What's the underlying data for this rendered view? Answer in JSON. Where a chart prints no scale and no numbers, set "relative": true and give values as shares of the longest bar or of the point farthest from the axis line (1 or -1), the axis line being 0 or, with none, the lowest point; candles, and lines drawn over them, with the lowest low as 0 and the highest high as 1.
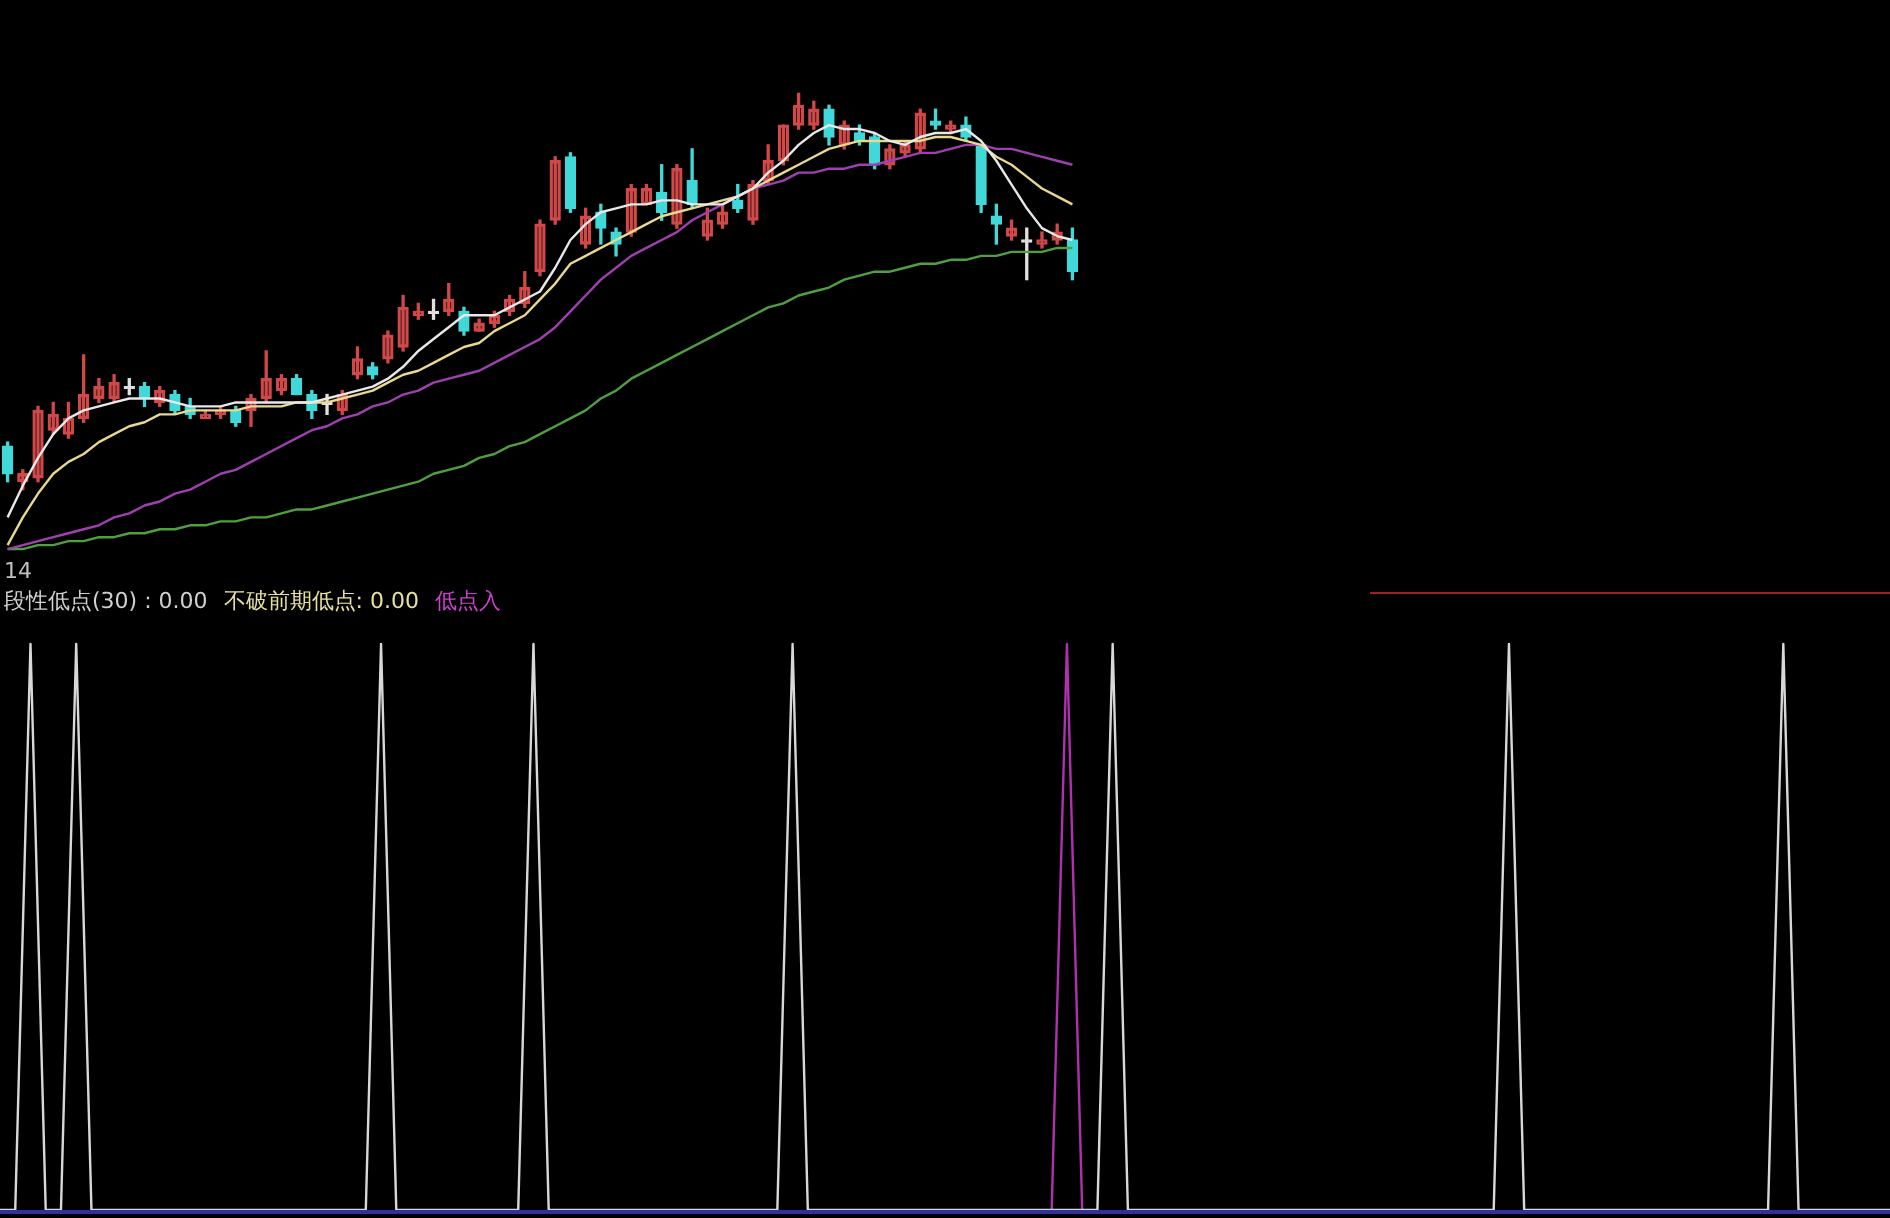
{
  "chart_data": [
    {
      "type": "candlestick",
      "relative": true,
      "marker": "none",
      "annotations": [
        "14"
      ],
      "categories": [
        null,
        null,
        null,
        null,
        null,
        null,
        null,
        null,
        null,
        null,
        null,
        null,
        null,
        null,
        null,
        null,
        null,
        null,
        null,
        null,
        null,
        null,
        null,
        null,
        null,
        null,
        null,
        null,
        null,
        null,
        null,
        null,
        null,
        null,
        null,
        null,
        null,
        null,
        null,
        null,
        null,
        null,
        null,
        null,
        null,
        null,
        null,
        null,
        null,
        null,
        null,
        null,
        null,
        null,
        null,
        null,
        null,
        null,
        null,
        null,
        null,
        null,
        null,
        null,
        null,
        null,
        null,
        null,
        null,
        null,
        null
      ],
      "ohlc": [
        [
          0.11,
          0.12,
          0.02,
          0.04
        ],
        [
          0.02,
          0.05,
          0,
          0.04
        ],
        [
          0.03,
          0.21,
          0.02,
          0.2
        ],
        [
          0.15,
          0.22,
          0.14,
          0.19
        ],
        [
          0.14,
          0.22,
          0.13,
          0.18
        ],
        [
          0.18,
          0.34,
          0.17,
          0.24
        ],
        [
          0.23,
          0.28,
          0.22,
          0.26
        ],
        [
          0.23,
          0.29,
          0.22,
          0.27
        ],
        [
          0.26,
          0.28,
          0.24,
          0.26
        ],
        [
          0.26,
          0.27,
          0.21,
          0.23
        ],
        [
          0.22,
          0.26,
          0.21,
          0.25
        ],
        [
          0.24,
          0.25,
          0.19,
          0.2
        ],
        [
          0.21,
          0.23,
          0.18,
          0.19
        ],
        [
          0.18,
          0.2,
          0.18,
          0.19
        ],
        [
          0.19,
          0.21,
          0.18,
          0.2
        ],
        [
          0.2,
          0.21,
          0.16,
          0.17
        ],
        [
          0.2,
          0.24,
          0.16,
          0.23
        ],
        [
          0.23,
          0.35,
          0.22,
          0.28
        ],
        [
          0.25,
          0.29,
          0.24,
          0.28
        ],
        [
          0.28,
          0.29,
          0.24,
          0.24
        ],
        [
          0.24,
          0.25,
          0.18,
          0.2
        ],
        [
          0.22,
          0.24,
          0.19,
          0.22
        ],
        [
          0.2,
          0.25,
          0.19,
          0.24
        ],
        [
          0.29,
          0.36,
          0.28,
          0.33
        ],
        [
          0.31,
          0.32,
          0.28,
          0.29
        ],
        [
          0.33,
          0.4,
          0.32,
          0.39
        ],
        [
          0.36,
          0.49,
          0.35,
          0.46
        ],
        [
          0.44,
          0.47,
          0.43,
          0.45
        ],
        [
          0.45,
          0.48,
          0.43,
          0.45
        ],
        [
          0.45,
          0.52,
          0.44,
          0.48
        ],
        [
          0.45,
          0.46,
          0.39,
          0.4
        ],
        [
          0.4,
          0.43,
          0.4,
          0.42
        ],
        [
          0.42,
          0.45,
          0.41,
          0.44
        ],
        [
          0.45,
          0.49,
          0.44,
          0.48
        ],
        [
          0.47,
          0.55,
          0.46,
          0.51
        ],
        [
          0.55,
          0.68,
          0.54,
          0.67
        ],
        [
          0.68,
          0.84,
          0.67,
          0.83
        ],
        [
          0.84,
          0.85,
          0.7,
          0.71
        ],
        [
          0.62,
          0.71,
          0.61,
          0.69
        ],
        [
          0.7,
          0.72,
          0.62,
          0.66
        ],
        [
          0.65,
          0.66,
          0.59,
          0.62
        ],
        [
          0.65,
          0.77,
          0.64,
          0.76
        ],
        [
          0.72,
          0.77,
          0.72,
          0.76
        ],
        [
          0.75,
          0.82,
          0.68,
          0.7
        ],
        [
          0.67,
          0.82,
          0.66,
          0.81
        ],
        [
          0.78,
          0.86,
          0.71,
          0.72
        ],
        [
          0.64,
          0.71,
          0.63,
          0.68
        ],
        [
          0.67,
          0.72,
          0.66,
          0.7
        ],
        [
          0.73,
          0.77,
          0.7,
          0.71
        ],
        [
          0.68,
          0.78,
          0.67,
          0.77
        ],
        [
          0.78,
          0.87,
          0.77,
          0.83
        ],
        [
          0.83,
          0.92,
          0.82,
          0.92
        ],
        [
          0.92,
          1,
          0.91,
          0.97
        ],
        [
          0.92,
          0.98,
          0.91,
          0.96
        ],
        [
          0.96,
          0.97,
          0.87,
          0.89
        ],
        [
          0.87,
          0.93,
          0.86,
          0.92
        ],
        [
          0.9,
          0.92,
          0.87,
          0.88
        ],
        [
          0.89,
          0.9,
          0.81,
          0.82
        ],
        [
          0.82,
          0.87,
          0.81,
          0.86
        ],
        [
          0.85,
          0.88,
          0.84,
          0.87
        ],
        [
          0.86,
          0.96,
          0.85,
          0.95
        ],
        [
          0.93,
          0.96,
          0.91,
          0.92
        ],
        [
          0.91,
          0.93,
          0.9,
          0.92
        ],
        [
          0.92,
          0.94,
          0.88,
          0.89
        ],
        [
          0.87,
          0.87,
          0.7,
          0.72
        ],
        [
          0.69,
          0.72,
          0.62,
          0.67
        ],
        [
          0.64,
          0.68,
          0.63,
          0.66
        ],
        [
          0.63,
          0.66,
          0.53,
          0.63
        ],
        [
          0.62,
          0.65,
          0.61,
          0.63
        ],
        [
          0.63,
          0.67,
          0.62,
          0.65
        ],
        [
          0.63,
          0.66,
          0.53,
          0.55
        ]
      ],
      "colors": [
        "#40d8d8",
        "#d04848",
        "#d04848",
        "#d04848",
        "#d04848",
        "#d04848",
        "#d04848",
        "#d04848",
        "#e0e0e0",
        "#40d8d8",
        "#d04848",
        "#40d8d8",
        "#40d8d8",
        "#d04848",
        "#d04848",
        "#40d8d8",
        "#d04848",
        "#d04848",
        "#d04848",
        "#40d8d8",
        "#40d8d8",
        "#e0e0e0",
        "#d04848",
        "#d04848",
        "#40d8d8",
        "#d04848",
        "#d04848",
        "#d04848",
        "#e0e0e0",
        "#d04848",
        "#40d8d8",
        "#d04848",
        "#d04848",
        "#d04848",
        "#d04848",
        "#d04848",
        "#d04848",
        "#40d8d8",
        "#d04848",
        "#40d8d8",
        "#40d8d8",
        "#d04848",
        "#d04848",
        "#40d8d8",
        "#d04848",
        "#40d8d8",
        "#d04848",
        "#d04848",
        "#40d8d8",
        "#d04848",
        "#d04848",
        "#d04848",
        "#d04848",
        "#d04848",
        "#40d8d8",
        "#d04848",
        "#40d8d8",
        "#40d8d8",
        "#d04848",
        "#d04848",
        "#d04848",
        "#40d8d8",
        "#d04848",
        "#40d8d8",
        "#40d8d8",
        "#40d8d8",
        "#d04848",
        "#e0e0e0",
        "#d04848",
        "#d04848",
        "#40d8d8"
      ],
      "series": [
        {
          "type": "line",
          "color": "#e8e8e8",
          "values": [
            -0.07,
            0.01,
            0.08,
            0.14,
            0.18,
            0.2,
            0.21,
            0.22,
            0.23,
            0.23,
            0.23,
            0.22,
            0.21,
            0.21,
            0.21,
            0.22,
            0.22,
            0.22,
            0.22,
            0.22,
            0.22,
            0.23,
            0.24,
            0.25,
            0.26,
            0.28,
            0.31,
            0.35,
            0.38,
            0.41,
            0.44,
            0.44,
            0.44,
            0.46,
            0.48,
            0.5,
            0.56,
            0.63,
            0.67,
            0.7,
            0.71,
            0.72,
            0.72,
            0.73,
            0.73,
            0.72,
            0.72,
            0.72,
            0.74,
            0.76,
            0.8,
            0.83,
            0.87,
            0.9,
            0.92,
            0.91,
            0.91,
            0.9,
            0.88,
            0.87,
            0.89,
            0.9,
            0.9,
            0.91,
            0.88,
            0.83,
            0.77,
            0.71,
            0.66,
            0.64,
            0.63
          ]
        },
        {
          "type": "line",
          "color": "#e8d890",
          "values": [
            -0.14,
            -0.07,
            -0.01,
            0.04,
            0.07,
            0.09,
            0.12,
            0.14,
            0.16,
            0.17,
            0.19,
            0.19,
            0.2,
            0.2,
            0.2,
            0.2,
            0.21,
            0.21,
            0.21,
            0.22,
            0.22,
            0.22,
            0.23,
            0.24,
            0.25,
            0.27,
            0.29,
            0.3,
            0.32,
            0.34,
            0.36,
            0.37,
            0.4,
            0.42,
            0.44,
            0.48,
            0.52,
            0.57,
            0.59,
            0.61,
            0.63,
            0.65,
            0.67,
            0.69,
            0.7,
            0.71,
            0.72,
            0.73,
            0.74,
            0.76,
            0.78,
            0.8,
            0.82,
            0.84,
            0.86,
            0.87,
            0.88,
            0.88,
            0.88,
            0.88,
            0.88,
            0.89,
            0.89,
            0.88,
            0.87,
            0.84,
            0.82,
            0.79,
            0.76,
            0.74,
            0.72
          ]
        },
        {
          "type": "line",
          "color": "#a040b0",
          "values": [
            -0.15,
            -0.14,
            -0.13,
            -0.12,
            -0.11,
            -0.1,
            -0.09,
            -0.07,
            -0.06,
            -0.04,
            -0.03,
            -0.01,
            0.0,
            0.02,
            0.04,
            0.05,
            0.07,
            0.09,
            0.11,
            0.13,
            0.15,
            0.16,
            0.18,
            0.19,
            0.21,
            0.22,
            0.24,
            0.25,
            0.27,
            0.28,
            0.29,
            0.3,
            0.32,
            0.34,
            0.36,
            0.38,
            0.41,
            0.45,
            0.49,
            0.53,
            0.56,
            0.59,
            0.61,
            0.63,
            0.65,
            0.68,
            0.7,
            0.72,
            0.74,
            0.76,
            0.77,
            0.78,
            0.8,
            0.8,
            0.81,
            0.81,
            0.82,
            0.82,
            0.83,
            0.84,
            0.85,
            0.85,
            0.86,
            0.87,
            0.87,
            0.86,
            0.86,
            0.85,
            0.84,
            0.83,
            0.82
          ]
        },
        {
          "type": "line",
          "color": "#50a040",
          "values": [
            -0.15,
            -0.15,
            -0.14,
            -0.14,
            -0.13,
            -0.13,
            -0.12,
            -0.12,
            -0.11,
            -0.11,
            -0.1,
            -0.1,
            -0.09,
            -0.09,
            -0.08,
            -0.08,
            -0.07,
            -0.07,
            -0.06,
            -0.05,
            -0.05,
            -0.04,
            -0.03,
            -0.02,
            -0.01,
            0.0,
            0.01,
            0.02,
            0.04,
            0.05,
            0.06,
            0.08,
            0.09,
            0.11,
            0.12,
            0.14,
            0.16,
            0.18,
            0.2,
            0.23,
            0.25,
            0.28,
            0.3,
            0.32,
            0.34,
            0.36,
            0.38,
            0.4,
            0.42,
            0.44,
            0.46,
            0.47,
            0.49,
            0.5,
            0.51,
            0.53,
            0.54,
            0.55,
            0.55,
            0.56,
            0.57,
            0.57,
            0.58,
            0.58,
            0.59,
            0.59,
            0.6,
            0.6,
            0.6,
            0.61,
            0.61
          ]
        }
      ]
    },
    {
      "type": "line",
      "relative": true,
      "marker": "none",
      "annotations": [
        "段性低点(30) : 0.00",
        "不破前期低点: 0.00",
        "低点入"
      ],
      "categories": [
        null,
        null,
        null,
        null,
        null,
        null,
        null,
        null,
        null,
        null,
        null,
        null,
        null,
        null,
        null,
        null,
        null,
        null,
        null,
        null,
        null,
        null,
        null,
        null,
        null,
        null,
        null,
        null,
        null,
        null,
        null,
        null,
        null,
        null,
        null,
        null,
        null,
        null,
        null,
        null,
        null,
        null,
        null,
        null,
        null,
        null,
        null,
        null,
        null,
        null,
        null,
        null,
        null,
        null,
        null,
        null,
        null,
        null,
        null,
        null,
        null,
        null,
        null,
        null,
        null,
        null,
        null,
        null,
        null,
        null,
        null,
        null,
        null,
        null,
        null,
        null,
        null,
        null,
        null,
        null,
        null,
        null,
        null,
        null,
        null,
        null,
        null,
        null,
        null,
        null,
        null,
        null,
        null,
        null,
        null,
        null,
        null,
        null,
        null,
        null,
        null,
        null,
        null,
        null,
        null,
        null,
        null,
        null,
        null,
        null,
        null,
        null,
        null,
        null,
        null,
        null,
        null,
        null,
        null,
        null,
        null,
        null,
        null,
        null,
        null
      ],
      "series": [
        {
          "color": "#d8d8d8",
          "values": [
            0,
            0,
            1,
            0,
            0,
            1,
            0,
            0,
            0,
            0,
            0,
            0,
            0,
            0,
            0,
            0,
            0,
            0,
            0,
            0,
            0,
            0,
            0,
            0,
            0,
            1,
            0,
            0,
            0,
            0,
            0,
            0,
            0,
            0,
            0,
            1,
            0,
            0,
            0,
            0,
            0,
            0,
            0,
            0,
            0,
            0,
            0,
            0,
            0,
            0,
            0,
            0,
            1,
            0,
            0,
            0,
            0,
            0,
            0,
            0,
            0,
            0,
            0,
            0,
            0,
            0,
            0,
            0,
            0,
            0,
            0,
            0,
            0,
            1,
            0,
            0,
            0,
            0,
            0,
            0,
            0,
            0,
            0,
            0,
            0,
            0,
            0,
            0,
            0,
            0,
            0,
            0,
            0,
            0,
            0,
            0,
            0,
            0,
            0,
            1,
            0,
            0,
            0,
            0,
            0,
            0,
            0,
            0,
            0,
            0,
            0,
            0,
            0,
            0,
            0,
            0,
            0,
            1,
            0,
            0,
            0,
            0,
            0,
            0,
            0
          ]
        },
        {
          "color": "#b030b0",
          "values": [
            null,
            null,
            null,
            null,
            null,
            null,
            null,
            null,
            null,
            null,
            null,
            null,
            null,
            null,
            null,
            null,
            null,
            null,
            null,
            null,
            null,
            null,
            null,
            null,
            null,
            null,
            null,
            null,
            null,
            null,
            null,
            null,
            null,
            null,
            null,
            null,
            null,
            null,
            null,
            null,
            null,
            null,
            null,
            null,
            null,
            null,
            null,
            null,
            null,
            null,
            null,
            null,
            null,
            null,
            null,
            null,
            null,
            null,
            null,
            null,
            null,
            null,
            null,
            null,
            null,
            null,
            null,
            null,
            null,
            0,
            1,
            0,
            null,
            null,
            null,
            null,
            null,
            null,
            null,
            null,
            null,
            null,
            null,
            null,
            null,
            null,
            null,
            null,
            null,
            null,
            null,
            null,
            null,
            null,
            null,
            null,
            null,
            null,
            null,
            null,
            null,
            null,
            null,
            null,
            null,
            null,
            null,
            null,
            null,
            null,
            null,
            null,
            null,
            null,
            null,
            null,
            null,
            null,
            null,
            null,
            null,
            null,
            null,
            null,
            null
          ]
        }
      ]
    }
  ]
}
